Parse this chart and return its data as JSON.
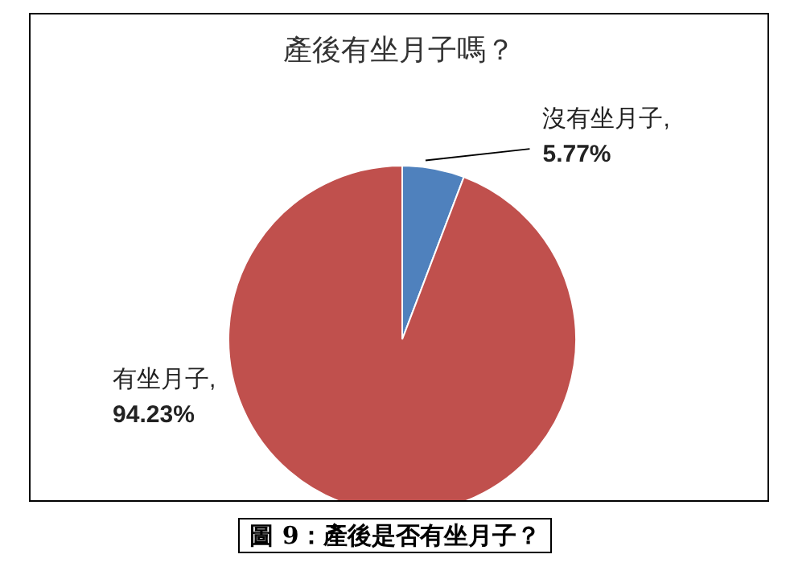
{
  "chart_data": {
    "type": "pie",
    "title": "產後有坐月子嗎？",
    "categories": [
      "沒有坐月子",
      "有坐月子"
    ],
    "values": [
      5.77,
      94.23
    ],
    "colors": [
      "#4f81bd",
      "#c0504d"
    ],
    "value_labels": [
      ", 5.77%",
      ", 94.23%"
    ],
    "legend": false,
    "annotations": [
      "圖 9：產後是否有坐月子？"
    ]
  }
}
